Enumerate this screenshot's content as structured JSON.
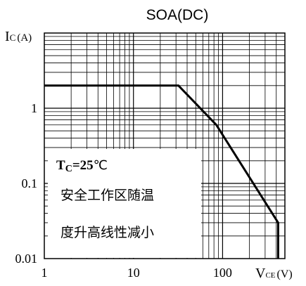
{
  "chart_data": {
    "type": "line",
    "title": "SOA(DC)",
    "xlabel": "VCE (V)",
    "xlabel_main": "V",
    "xlabel_sub": "CE",
    "xlabel_unit": "(V)",
    "ylabel": "IC (A)",
    "ylabel_main": "I",
    "ylabel_sub": "C",
    "ylabel_unit": "(A)",
    "x_scale": "log",
    "y_scale": "log",
    "xlim": [
      1,
      500
    ],
    "ylim": [
      0.01,
      10
    ],
    "x_ticks": [
      {
        "value": 1,
        "label": "1"
      },
      {
        "value": 10,
        "label": "10"
      },
      {
        "value": 100,
        "label": "100"
      }
    ],
    "y_ticks": [
      {
        "value": 0.01,
        "label": "0.01"
      },
      {
        "value": 0.1,
        "label": "0.1"
      },
      {
        "value": 1,
        "label": "1"
      }
    ],
    "grid": true,
    "series": [
      {
        "x": [
          1,
          32,
          85,
          420,
          420
        ],
        "y": [
          2.0,
          2.0,
          0.6,
          0.03,
          0.01
        ]
      }
    ],
    "annotations": {
      "condition_main": "T",
      "condition_sub": "C",
      "condition_value": "=25",
      "condition_unit": "℃",
      "note_line1": "安全工作区随温",
      "note_line2": "度升高线性减小"
    }
  }
}
